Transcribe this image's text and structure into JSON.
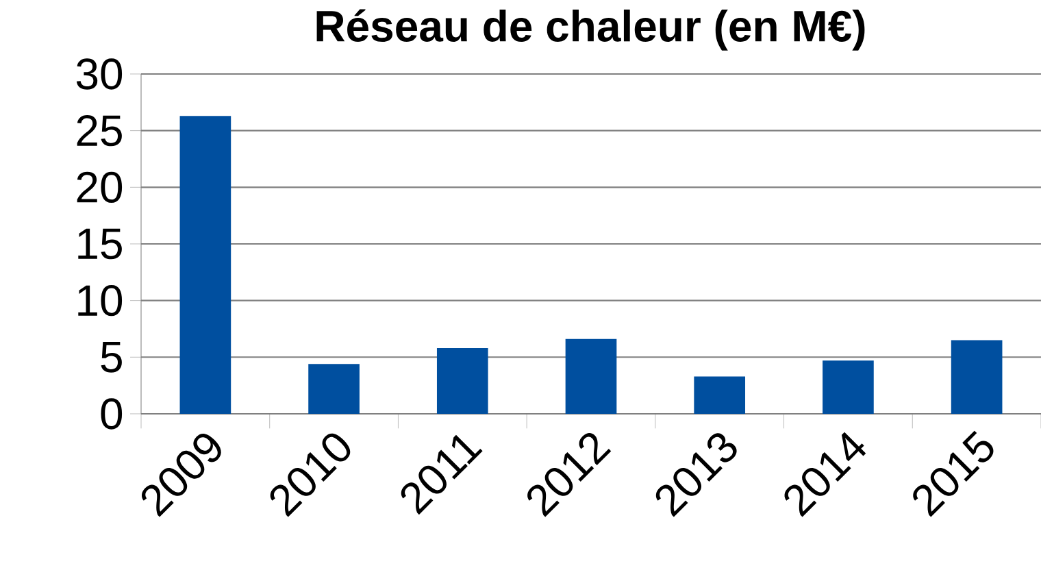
{
  "chart_data": {
    "type": "bar",
    "title": "Réseau de chaleur (en M€)",
    "categories": [
      "2009",
      "2010",
      "2011",
      "2012",
      "2013",
      "2014",
      "2015"
    ],
    "values": [
      26.3,
      4.4,
      5.8,
      6.6,
      3.3,
      4.7,
      6.5
    ],
    "color": "#004f9f",
    "ylim": [
      0,
      30
    ],
    "yticks": [
      0,
      5,
      10,
      15,
      20,
      25,
      30
    ],
    "grid": "y"
  }
}
